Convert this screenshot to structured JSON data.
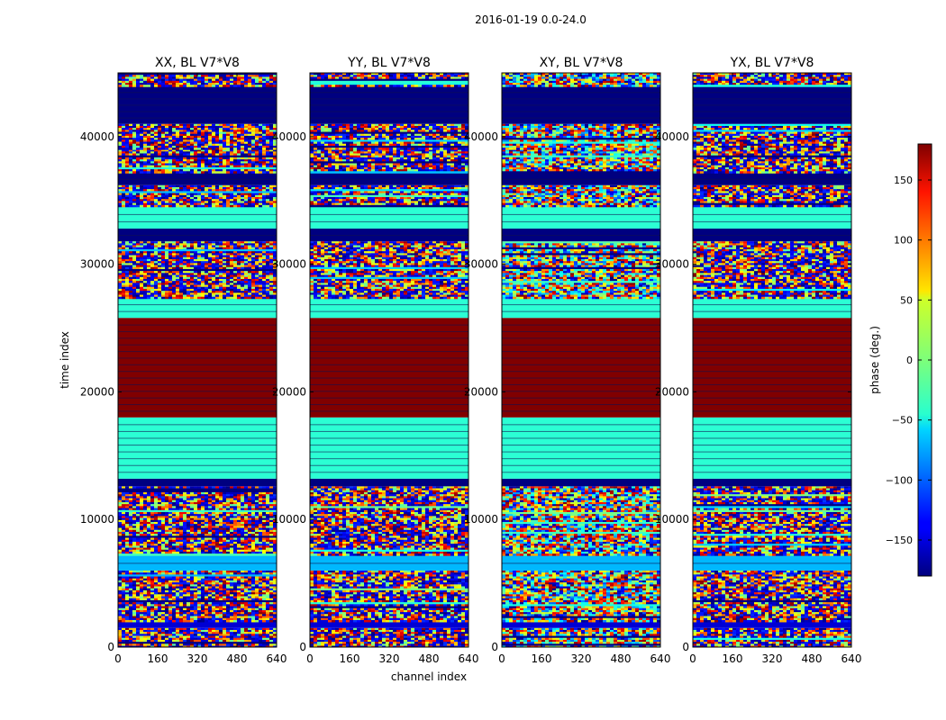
{
  "figure": {
    "suptitle": "2016-01-19 0.0-24.0"
  },
  "chart_data": {
    "type": "heatmap",
    "suptitle": "2016-01-19 0.0-24.0",
    "xlabel": "channel index",
    "ylabel": "time index",
    "xlim": [
      0,
      640
    ],
    "ylim": [
      0,
      45000
    ],
    "xticks": [
      0,
      160,
      320,
      480,
      640
    ],
    "yticks": [
      0,
      10000,
      20000,
      30000,
      40000
    ],
    "panels": [
      {
        "title": "XX, BL V7*V8",
        "polarization": "XX"
      },
      {
        "title": "YY, BL V7*V8",
        "polarization": "YY"
      },
      {
        "title": "XY, BL V7*V8",
        "polarization": "XY"
      },
      {
        "title": "YX, BL V7*V8",
        "polarization": "YX"
      }
    ],
    "colorbar": {
      "label": "phase (deg.)",
      "range": [
        -180,
        180
      ],
      "ticks": [
        -150,
        -100,
        -50,
        0,
        50,
        100,
        150
      ],
      "tick_labels": [
        "−150",
        "−100",
        "−50",
        "0",
        "50",
        "100",
        "150"
      ],
      "colormap": "jet"
    },
    "bands": [
      {
        "t_start": 0,
        "t_end": 1500,
        "kind": "noise"
      },
      {
        "t_start": 1500,
        "t_end": 2000,
        "kind": "flat",
        "phase": -150
      },
      {
        "t_start": 2000,
        "t_end": 6000,
        "kind": "noise"
      },
      {
        "t_start": 6000,
        "t_end": 7200,
        "kind": "flat",
        "phase": -70
      },
      {
        "t_start": 7200,
        "t_end": 12600,
        "kind": "noise"
      },
      {
        "t_start": 12600,
        "t_end": 13200,
        "kind": "flat",
        "phase": -180
      },
      {
        "t_start": 13200,
        "t_end": 18000,
        "kind": "flat",
        "phase": -30
      },
      {
        "t_start": 18000,
        "t_end": 25800,
        "kind": "flat",
        "phase": 180
      },
      {
        "t_start": 25800,
        "t_end": 27400,
        "kind": "flat",
        "phase": -30
      },
      {
        "t_start": 27400,
        "t_end": 31800,
        "kind": "noise"
      },
      {
        "t_start": 31800,
        "t_end": 32800,
        "kind": "flat",
        "phase": -180
      },
      {
        "t_start": 32800,
        "t_end": 34500,
        "kind": "flat",
        "phase": -30
      },
      {
        "t_start": 34500,
        "t_end": 36200,
        "kind": "noise"
      },
      {
        "t_start": 36200,
        "t_end": 37200,
        "kind": "flat",
        "phase": -180
      },
      {
        "t_start": 37200,
        "t_end": 39000,
        "kind": "noise"
      },
      {
        "t_start": 39000,
        "t_end": 41000,
        "kind": "noise"
      },
      {
        "t_start": 41000,
        "t_end": 44000,
        "kind": "flat",
        "phase": -180
      },
      {
        "t_start": 44000,
        "t_end": 45000,
        "kind": "noise"
      }
    ]
  }
}
